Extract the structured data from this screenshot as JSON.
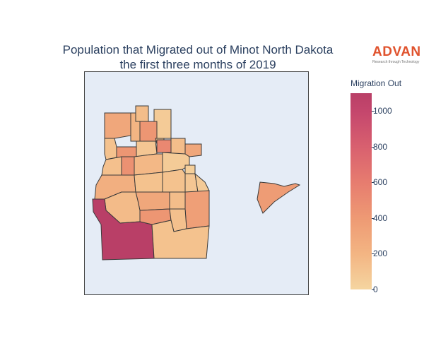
{
  "title": {
    "line1": "Population that Migrated out of Minot North Dakota",
    "line2": "the first three months of 2019"
  },
  "logo": {
    "brand": "ADVAN",
    "tagline": "Research through Technology"
  },
  "colorbar": {
    "title": "Migration Out",
    "min": 0,
    "max": 1100,
    "ticks": [
      "0",
      "200",
      "400",
      "600",
      "800",
      "1000"
    ],
    "color_low": "#f5d5a0",
    "color_high": "#b93f67"
  },
  "map": {
    "background": "#e5ecf6",
    "tracts": [
      {
        "id": "t01",
        "value": 300
      },
      {
        "id": "t02",
        "value": 200
      },
      {
        "id": "t03",
        "value": 150
      },
      {
        "id": "t04",
        "value": 420
      },
      {
        "id": "t05",
        "value": 60
      },
      {
        "id": "t06",
        "value": 120
      },
      {
        "id": "t07",
        "value": 420
      },
      {
        "id": "t08",
        "value": 90
      },
      {
        "id": "t09",
        "value": 100
      },
      {
        "id": "t10",
        "value": 520
      },
      {
        "id": "t11",
        "value": 150
      },
      {
        "id": "t12",
        "value": 300
      },
      {
        "id": "t13",
        "value": 460
      },
      {
        "id": "t14",
        "value": 130
      },
      {
        "id": "t15",
        "value": 180
      },
      {
        "id": "t16",
        "value": 60
      },
      {
        "id": "t17",
        "value": 40
      },
      {
        "id": "t18",
        "value": 120
      },
      {
        "id": "t19",
        "value": 240
      },
      {
        "id": "t20",
        "value": 120
      },
      {
        "id": "t21",
        "value": 90
      },
      {
        "id": "t22",
        "value": 70
      },
      {
        "id": "t23",
        "value": 300
      },
      {
        "id": "t24",
        "value": 150
      },
      {
        "id": "t25",
        "value": 360
      },
      {
        "id": "t26",
        "value": 160
      },
      {
        "id": "t27",
        "value": 420
      },
      {
        "id": "t28",
        "value": 130
      },
      {
        "id": "t29",
        "value": 380
      },
      {
        "id": "t30",
        "value": 1100
      },
      {
        "id": "t31",
        "value": 120
      }
    ]
  }
}
